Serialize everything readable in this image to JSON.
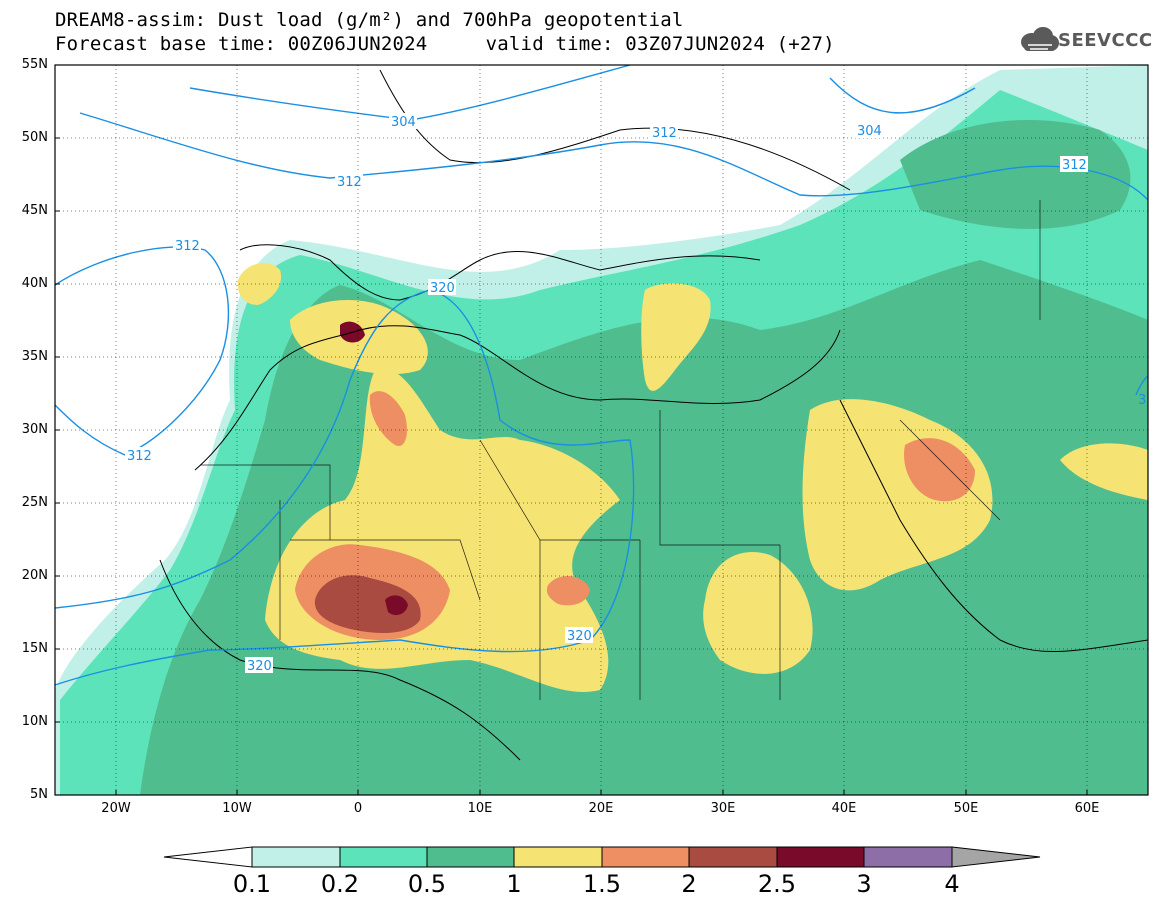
{
  "title": {
    "line1": "DREAM8-assim: Dust load (g/m²) and 700hPa geopotential",
    "line2": "Forecast base time: 00Z06JUN2024     valid time: 03Z07JUN2024 (+27)"
  },
  "logo": {
    "text": "SEEVCCC",
    "icon": "cloud-logo-icon"
  },
  "map": {
    "lat_labels": [
      "55N",
      "50N",
      "45N",
      "40N",
      "35N",
      "30N",
      "25N",
      "20N",
      "15N",
      "10N",
      "5N"
    ],
    "lon_labels": [
      "20W",
      "10W",
      "0",
      "10E",
      "20E",
      "30E",
      "40E",
      "50E",
      "60E"
    ],
    "contour_labels": [
      {
        "text": "304",
        "id": "c304a"
      },
      {
        "text": "304",
        "id": "c304b"
      },
      {
        "text": "312",
        "id": "c312a"
      },
      {
        "text": "312",
        "id": "c312b"
      },
      {
        "text": "312",
        "id": "c312c"
      },
      {
        "text": "312",
        "id": "c312d"
      },
      {
        "text": "312",
        "id": "c312e"
      },
      {
        "text": "320",
        "id": "c320a"
      },
      {
        "text": "320",
        "id": "c320b"
      },
      {
        "text": "320",
        "id": "c320c"
      },
      {
        "text": "3",
        "id": "c3edge"
      }
    ]
  },
  "colorbar": {
    "labels": [
      "0.1",
      "0.2",
      "0.5",
      "1",
      "1.5",
      "2",
      "2.5",
      "3",
      "4"
    ],
    "colors": [
      "#c1f0e8",
      "#5de3b9",
      "#50bd8f",
      "#f5e373",
      "#ee8e63",
      "#a94b41",
      "#7a0a2a",
      "#8e6ea7"
    ]
  }
}
